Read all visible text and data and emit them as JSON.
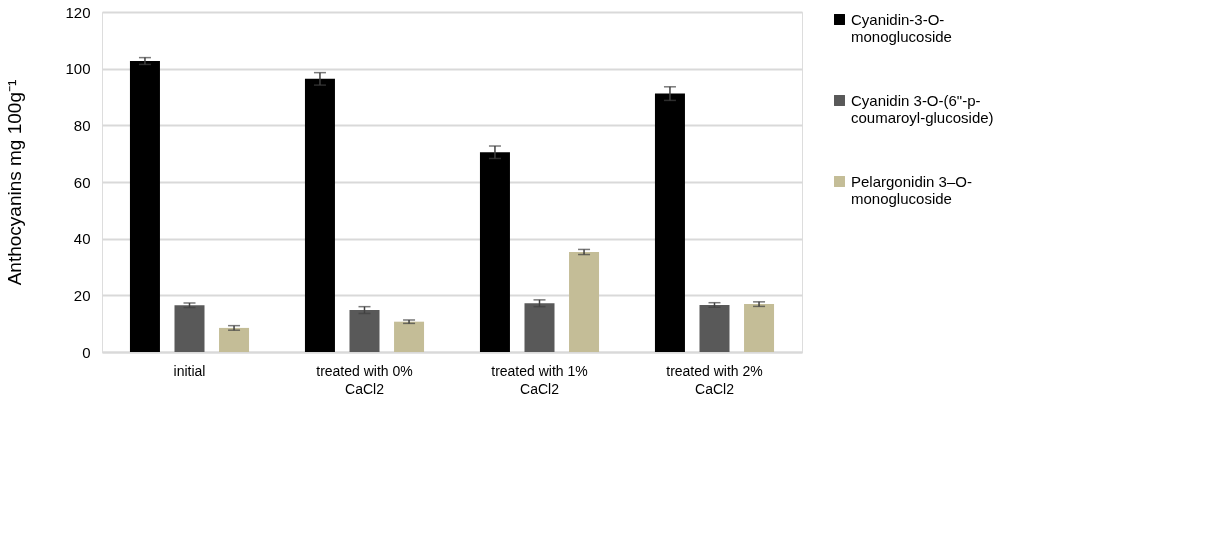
{
  "chart_data": {
    "type": "bar",
    "ylabel": "Anthocyanins   mg 100g⁻¹",
    "categories": [
      "initial",
      "treated with 0% CaCl2",
      "treated with 1% CaCl2",
      "treated with  2% CaCl2"
    ],
    "series": [
      {
        "name": "Cyanidin-3-O-monoglucoside",
        "color": "#000000",
        "values": [
          102.7,
          96.4,
          70.5,
          91.2
        ],
        "errors": [
          1.2,
          2.2,
          2.2,
          2.4
        ]
      },
      {
        "name": "Cyanidin 3-O-(6\"-p-coumaroyl-glucoside)",
        "color": "#595959",
        "values": [
          16.5,
          14.8,
          17.2,
          16.6
        ],
        "errors": [
          0.8,
          1.2,
          1.2,
          0.8
        ]
      },
      {
        "name": "Pelargonidin 3–O-monoglucoside",
        "color": "#c4bd97",
        "values": [
          8.5,
          10.7,
          35.3,
          16.9
        ],
        "errors": [
          0.8,
          0.6,
          0.9,
          0.8
        ]
      }
    ],
    "ylim": [
      0,
      120
    ],
    "yticks": [
      0,
      20,
      40,
      60,
      80,
      100,
      120
    ],
    "grid": "y",
    "legend": "right"
  }
}
